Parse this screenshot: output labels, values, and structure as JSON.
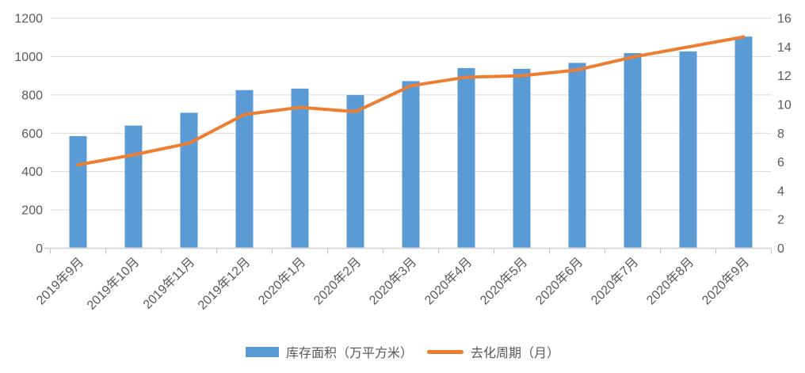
{
  "chart_data": {
    "type": "bar",
    "subtype": "combo-bar-line-dual-axis",
    "title": "",
    "categories": [
      "2019年9月",
      "2019年10月",
      "2019年11月",
      "2019年12月",
      "2020年1月",
      "2020年2月",
      "2020年3月",
      "2020年4月",
      "2020年5月",
      "2020年6月",
      "2020年7月",
      "2020年8月",
      "2020年9月"
    ],
    "series": [
      {
        "name": "库存面积（万平方米）",
        "type": "bar",
        "axis": "left",
        "color": "#5B9BD5",
        "values": [
          585,
          640,
          707,
          825,
          833,
          799,
          872,
          940,
          936,
          967,
          1018,
          1027,
          1104
        ]
      },
      {
        "name": "去化周期（月）",
        "type": "line",
        "axis": "right",
        "color": "#ED7D31",
        "values": [
          5.8,
          6.5,
          7.3,
          9.3,
          9.8,
          9.5,
          11.3,
          11.9,
          12.0,
          12.4,
          13.3,
          14.0,
          14.7
        ]
      }
    ],
    "left_axis": {
      "min": 0,
      "max": 1200,
      "step": 200,
      "ticks": [
        "0",
        "200",
        "400",
        "600",
        "800",
        "1000",
        "1200"
      ]
    },
    "right_axis": {
      "min": 0,
      "max": 16,
      "step": 2,
      "ticks": [
        "0",
        "2",
        "4",
        "6",
        "8",
        "10",
        "12",
        "14",
        "16"
      ]
    },
    "grid": true,
    "x_label_rotation_deg": -45,
    "legend_position": "bottom",
    "colors": {
      "bar": "#5B9BD5",
      "line": "#ED7D31",
      "grid": "#D9D9D9",
      "axis": "#D9D9D9",
      "tick": "#BFBFBF",
      "label": "#595959",
      "background": "#FFFFFF"
    }
  },
  "legend": {
    "items": [
      {
        "label": "库存面积（万平方米）",
        "marker": "bar-swatch",
        "color": "#5B9BD5"
      },
      {
        "label": "去化周期（月）",
        "marker": "line-swatch",
        "color": "#ED7D31"
      }
    ]
  }
}
